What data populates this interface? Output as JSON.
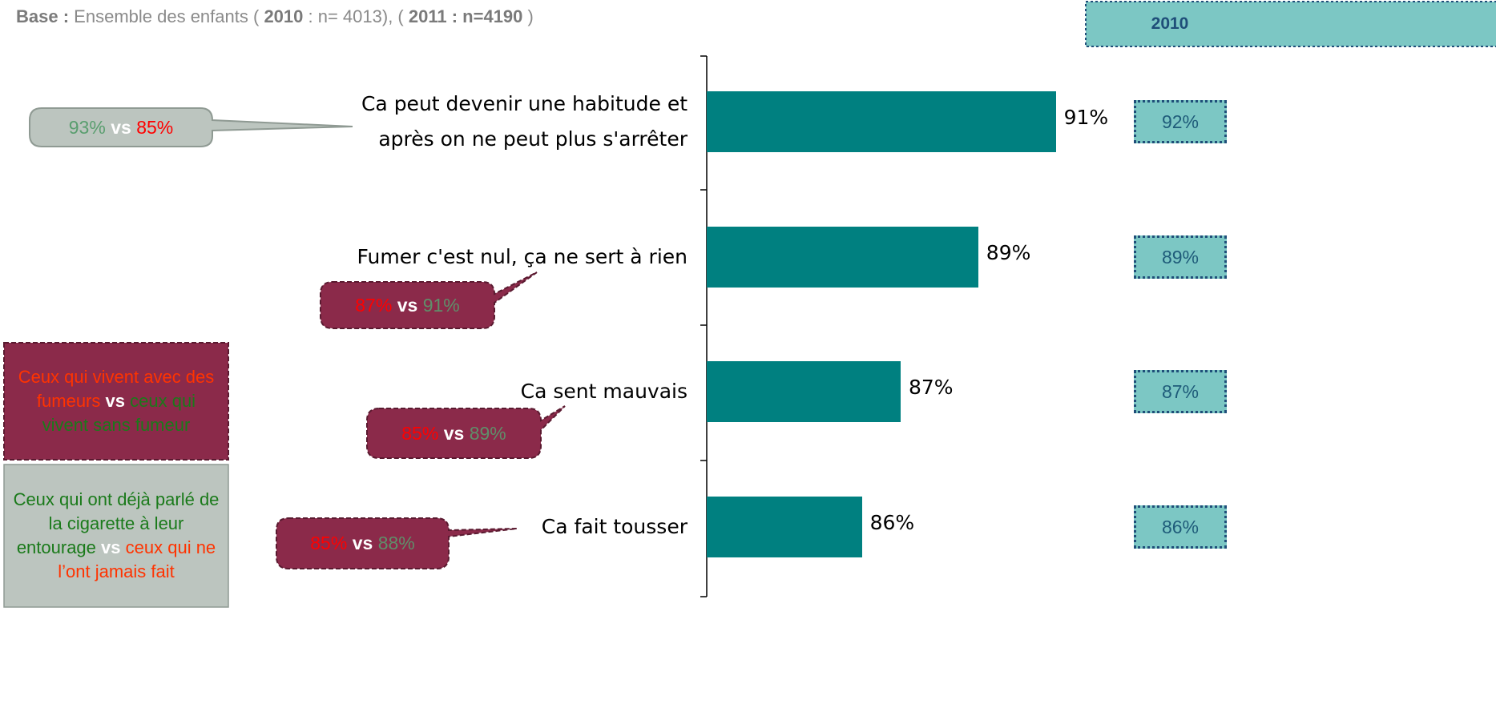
{
  "note": [
    {
      "text": "Base :",
      "bold": true
    },
    {
      "text": "Ensemble des enfants (",
      "bold": false
    },
    {
      "text": "2010",
      "bold": true
    },
    {
      "text": ": n= 4013), (",
      "bold": false
    },
    {
      "text": "2011 : n=4190",
      "bold": true
    },
    {
      "text": ")",
      "bold": false
    }
  ],
  "chart_data": {
    "type": "bar",
    "orientation": "horizontal",
    "categories": [
      "Ca peut devenir une habitude et après on ne peut plus s'arrêter",
      "Fumer c'est nul, ça ne sert à rien",
      "Ca sent mauvais",
      "Ca fait tousser"
    ],
    "values": [
      91,
      89,
      87,
      86
    ],
    "value_labels": [
      "91%",
      "89%",
      "87%",
      "86%"
    ],
    "color": "#008080",
    "xlim": [
      82,
      100
    ]
  },
  "comparison": {
    "title": "2010",
    "values": [
      92,
      89,
      87,
      86
    ],
    "value_labels": [
      "92%",
      "89%",
      "87%",
      "86%"
    ]
  },
  "callouts": [
    {
      "style": "grey",
      "values": [
        93,
        85
      ],
      "value_labels": [
        "93%",
        "85%"
      ],
      "colors": [
        "#5a9e6f",
        "#ff0000"
      ],
      "separator": "vs"
    },
    {
      "style": "purple",
      "values": [
        87,
        91
      ],
      "value_labels": [
        "87%",
        "91%"
      ],
      "colors": [
        "#ff0000",
        "#5f8f6a"
      ],
      "separator": "vs"
    },
    {
      "style": "purple",
      "values": [
        85,
        89
      ],
      "value_labels": [
        "85%",
        "89%"
      ],
      "colors": [
        "#ff0000",
        "#5f8f6a"
      ],
      "separator": "vs"
    },
    {
      "style": "purple",
      "values": [
        85,
        88
      ],
      "value_labels": [
        "85%",
        "88%"
      ],
      "colors": [
        "#ff0000",
        "#5f8f6a"
      ],
      "separator": "vs"
    }
  ],
  "legend": [
    {
      "style": "purple",
      "parts": [
        {
          "text": "Ceux qui vivent avec des fumeurs",
          "color": "#ff3300"
        },
        {
          "text": "vs",
          "color": "#ffffff"
        },
        {
          "text": "ceux qui vivent sans fumeur",
          "color": "#1a7a1a"
        }
      ]
    },
    {
      "style": "grey",
      "parts": [
        {
          "text": "Ceux qui ont déjà parlé de la cigarette à leur entourage",
          "color": "#1a7a1a"
        },
        {
          "text": "vs",
          "color": "#ffffff"
        },
        {
          "text": "ceux qui ne l’ont jamais fait",
          "color": "#ff3300"
        }
      ]
    }
  ]
}
